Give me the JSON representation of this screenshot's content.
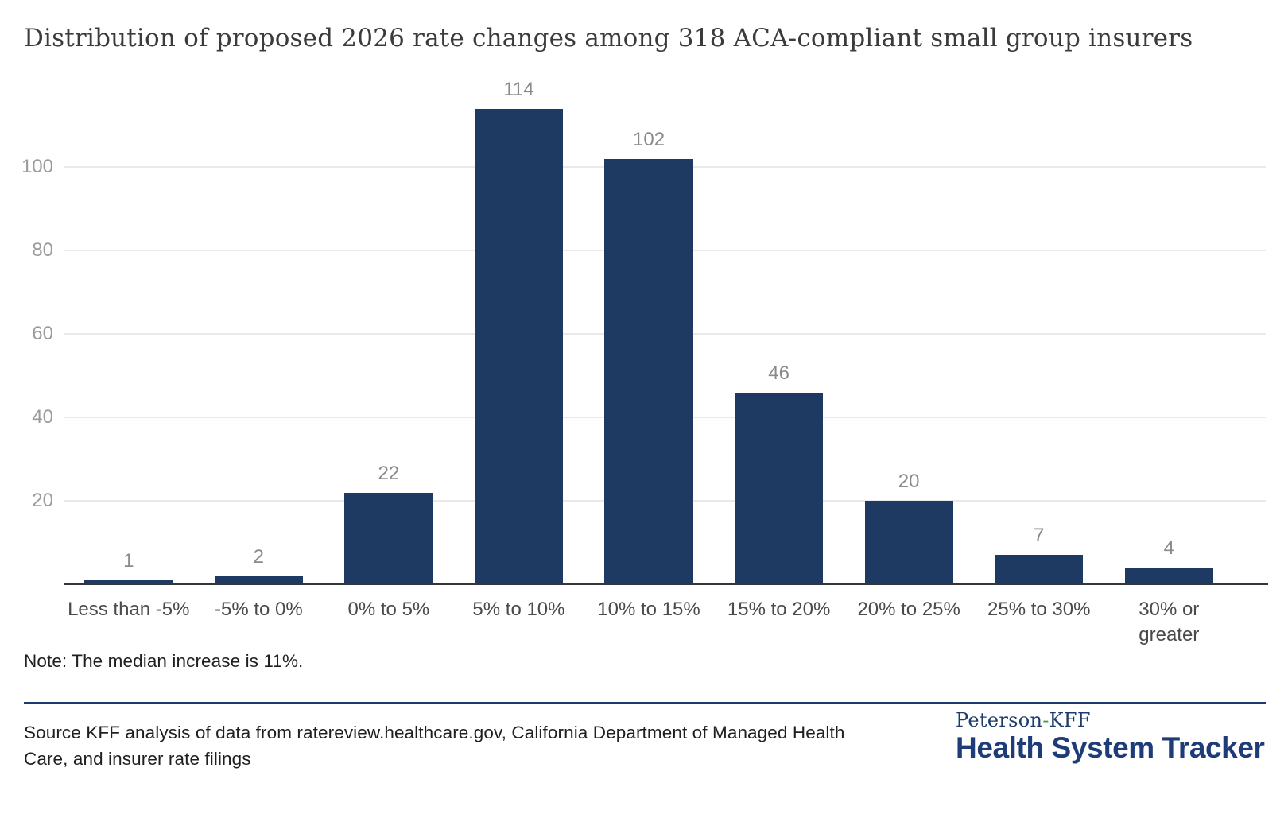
{
  "page": {
    "title": "Distribution of proposed 2026 rate changes among 318 ACA-compliant small group insurers",
    "note": "Note: The median increase is 11%.",
    "source": "Source KFF analysis of data from ratereview.healthcare.gov, California Department of Managed Health Care, and insurer rate filings",
    "logo": {
      "brand_prefix": "Peterson",
      "brand_separator": "-",
      "brand_suffix": "KFF",
      "product": "Health System Tracker"
    }
  },
  "colors": {
    "bar": "#1F3A62",
    "grid": "#E9E9E9",
    "axis": "#33373D",
    "value_label": "#8A8A8A",
    "tick_label": "#9B9B9B",
    "category_label": "#4A4A4A",
    "navy": "#1D3C6E",
    "navy_bright": "#1E3D78",
    "green": "#43A047"
  },
  "chart_data": {
    "type": "bar",
    "title": "Distribution of proposed 2026 rate changes among 318 ACA-compliant small group insurers",
    "categories": [
      "Less than -5%",
      "-5% to 0%",
      "0% to 5%",
      "5% to 10%",
      "10% to 15%",
      "15% to 20%",
      "20% to 25%",
      "25% to 30%",
      "30% or\ngreater"
    ],
    "values": [
      1,
      2,
      22,
      114,
      102,
      46,
      20,
      7,
      4
    ],
    "xlabel": "",
    "ylabel": "",
    "ylim": [
      0,
      120
    ],
    "yticks": [
      20,
      40,
      60,
      80,
      100
    ],
    "grid": true,
    "legend": "none",
    "bar_labels_shown": true,
    "note": "The median increase is 11%."
  }
}
